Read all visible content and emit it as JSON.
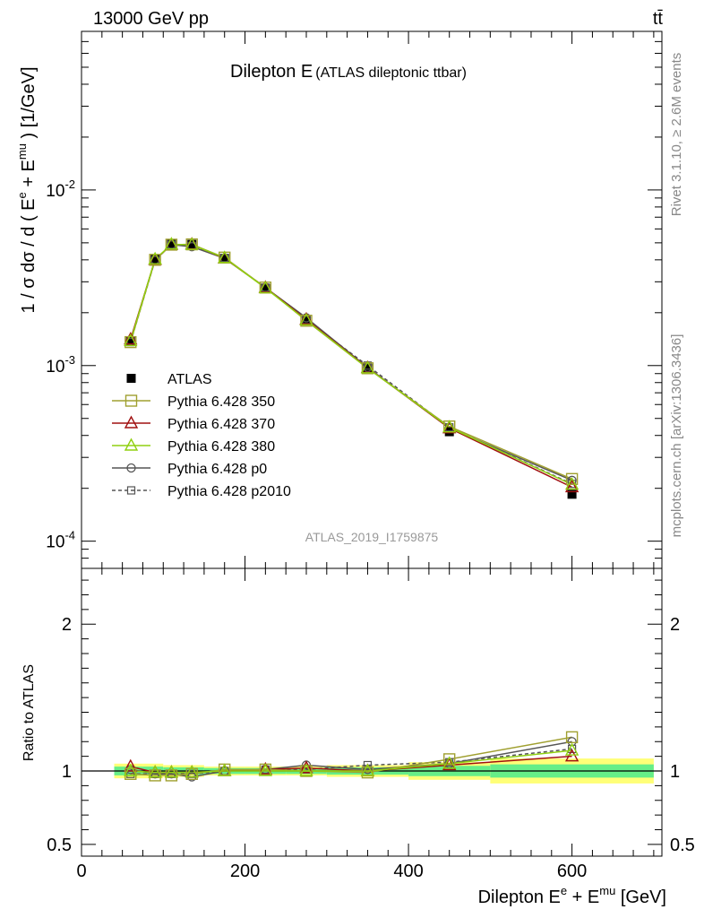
{
  "header": {
    "energy_label": "13000 GeV pp",
    "process_label": "tt̄"
  },
  "side_labels": {
    "rivet": "Rivet 3.1.10, ≥ 2.6M events",
    "mcplots": "mcplots.cern.ch [arXiv:1306.3436]"
  },
  "colors": {
    "atlas": "#000000",
    "p350": "#a0a030",
    "p370": "#a01010",
    "p380": "#90d010",
    "p0": "#555555",
    "p2010": "#555555",
    "band_green": "#66ee88",
    "band_yellow": "#ffff77"
  },
  "chart_data": [
    {
      "type": "line",
      "title": "Dilepton E",
      "subtitle": "(ATLAS dileptonic ttbar)",
      "watermark": "ATLAS_2019_I1759875",
      "ylabel": "1 / σ  dσ / d ( E^e + E^mu ) [1/GeV]",
      "y_scale": "log",
      "xlim": [
        0,
        710
      ],
      "ylim": [
        7e-05,
        0.08
      ],
      "y_ticks": [
        {
          "value": 0.01,
          "label": "10^-2"
        },
        {
          "value": 0.001,
          "label": "10^-3"
        },
        {
          "value": 0.0001,
          "label": "10^-4"
        }
      ],
      "legend_position": "lower-left",
      "x": [
        60,
        90,
        110,
        135,
        175,
        225,
        275,
        350,
        450,
        600
      ],
      "series": [
        {
          "name": "ATLAS",
          "marker": "filled-square",
          "values": [
            0.00138,
            0.00405,
            0.00495,
            0.0049,
            0.00408,
            0.00275,
            0.0018,
            0.000965,
            0.00042,
            0.000185
          ]
        },
        {
          "name": "Pythia 6.428 350",
          "marker": "open-square",
          "values": [
            0.00136,
            0.004,
            0.00488,
            0.0049,
            0.00412,
            0.00278,
            0.0018,
            0.000965,
            0.00045,
            0.000226
          ]
        },
        {
          "name": "Pythia 6.428 370",
          "marker": "open-triangle",
          "values": [
            0.00141,
            0.004,
            0.00488,
            0.0049,
            0.00408,
            0.00278,
            0.00183,
            0.00097,
            0.00044,
            0.000203
          ]
        },
        {
          "name": "Pythia 6.428 380",
          "marker": "open-triangle",
          "values": [
            0.00138,
            0.00403,
            0.0049,
            0.00488,
            0.0041,
            0.00276,
            0.00181,
            0.000965,
            0.000445,
            0.00021
          ]
        },
        {
          "name": "Pythia 6.428 p0",
          "marker": "open-circle",
          "values": [
            0.00139,
            0.004,
            0.00488,
            0.00475,
            0.00408,
            0.00278,
            0.00187,
            0.000975,
            0.00044,
            0.000222
          ]
        },
        {
          "name": "Pythia 6.428 p2010",
          "marker": "open-square-dashed",
          "values": [
            0.00136,
            0.00398,
            0.00488,
            0.0048,
            0.0041,
            0.00278,
            0.00182,
            0.001,
            0.000445,
            0.000212
          ]
        }
      ]
    },
    {
      "type": "line",
      "ylabel": "Ratio to ATLAS",
      "xlabel": "Dilepton E^e + E^mu [GeV]",
      "xlim": [
        0,
        710
      ],
      "ylim": [
        0.42,
        2.38
      ],
      "x_ticks": [
        0,
        200,
        400,
        600
      ],
      "y_ticks": [
        0.5,
        1,
        2
      ],
      "x": [
        60,
        90,
        110,
        135,
        175,
        225,
        275,
        350,
        450,
        600
      ],
      "band_edges": [
        40,
        75,
        100,
        120,
        150,
        200,
        250,
        300,
        400,
        500,
        700
      ],
      "band_inner": [
        0.03,
        0.03,
        0.025,
        0.025,
        0.02,
        0.02,
        0.02,
        0.025,
        0.035,
        0.045
      ],
      "band_outer": [
        0.05,
        0.05,
        0.04,
        0.04,
        0.03,
        0.03,
        0.03,
        0.04,
        0.06,
        0.085
      ],
      "series": [
        {
          "name": "Pythia 6.428 350",
          "values": [
            0.98,
            0.97,
            0.97,
            0.98,
            1.01,
            1.01,
            1.0,
            0.99,
            1.08,
            1.23
          ]
        },
        {
          "name": "Pythia 6.428 370",
          "values": [
            1.03,
            0.99,
            0.99,
            0.99,
            1.0,
            1.01,
            1.02,
            1.0,
            1.04,
            1.1
          ]
        },
        {
          "name": "Pythia 6.428 380",
          "values": [
            1.0,
            0.99,
            0.99,
            0.99,
            1.0,
            1.0,
            1.0,
            1.0,
            1.05,
            1.14
          ]
        },
        {
          "name": "Pythia 6.428 p0",
          "values": [
            1.01,
            0.98,
            0.98,
            0.96,
            1.0,
            1.01,
            1.04,
            1.01,
            1.05,
            1.2
          ]
        },
        {
          "name": "Pythia 6.428 p2010",
          "values": [
            0.98,
            0.98,
            0.98,
            0.98,
            1.0,
            1.01,
            1.01,
            1.04,
            1.06,
            1.15
          ]
        }
      ]
    }
  ]
}
